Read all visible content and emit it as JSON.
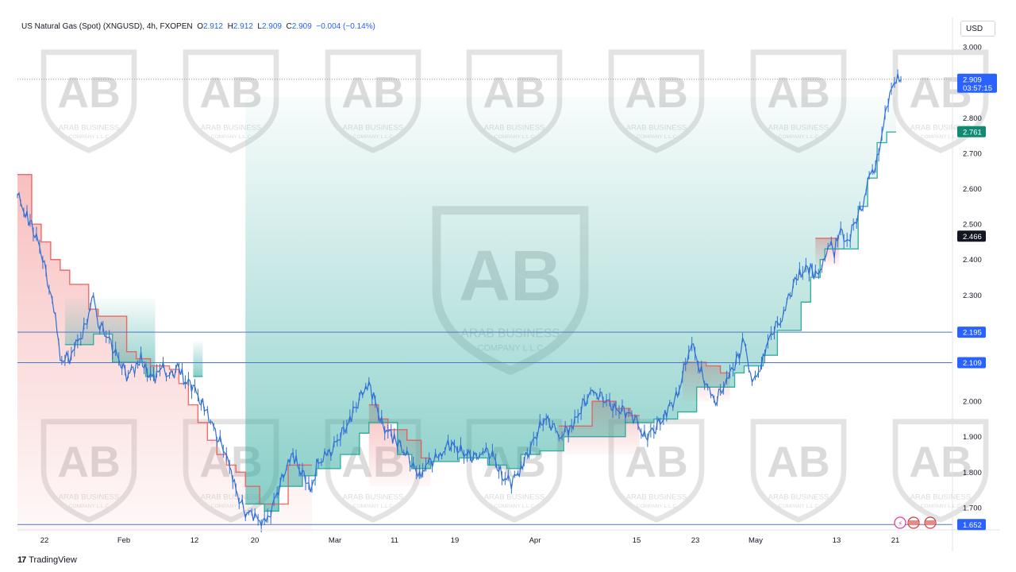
{
  "header": {
    "symbol": "US Natural Gas (Spot) (XNGUSD), 4h, FXOPEN",
    "o_label": "O",
    "o_value": "2.912",
    "h_label": "H",
    "h_value": "2.912",
    "l_label": "L",
    "l_value": "2.909",
    "c_label": "C",
    "c_value": "2.909",
    "change": "−0.004 (−0.14%)"
  },
  "currency_button": "USD",
  "footer": {
    "brand": "TradingView",
    "logo_glyph": "17"
  },
  "watermark": {
    "letters": "AB",
    "line1": "ARAB BUSINESS",
    "line2": "COMPANY L.L.C"
  },
  "colors": {
    "up": "#2962ff",
    "down": "#2962ff",
    "line": "#4a7fd1",
    "resistance": "#ef5350",
    "support": "#26a69a",
    "price_label_bg": "#2962ff",
    "dark_label_bg": "#131722",
    "green_label_bg": "#0f8a73"
  },
  "chart_data": {
    "type": "line",
    "title": "US Natural Gas (Spot) (XNGUSD), 4h, FXOPEN",
    "xlabel": "",
    "ylabel": "",
    "ylim": [
      1.637,
      3.043
    ],
    "y_ticks": [
      "2.800",
      "2.700",
      "2.600",
      "2.500",
      "2.400",
      "2.300",
      "2.000",
      "1.900",
      "1.800",
      "1.700"
    ],
    "y_top_partial_tick": "3.000",
    "x_ticks": [
      "22",
      "Feb",
      "12",
      "20",
      "Mar",
      "11",
      "19",
      "Apr",
      "15",
      "23",
      "May",
      "13",
      "21"
    ],
    "price_points": [
      [
        0,
        2.58
      ],
      [
        2,
        2.52
      ],
      [
        3,
        2.5
      ],
      [
        5,
        2.42
      ],
      [
        7,
        2.3
      ],
      [
        8,
        2.24
      ],
      [
        9,
        2.12
      ],
      [
        11,
        2.12
      ],
      [
        12,
        2.15
      ],
      [
        14,
        2.2
      ],
      [
        16,
        2.3
      ],
      [
        17,
        2.22
      ],
      [
        19,
        2.18
      ],
      [
        21,
        2.13
      ],
      [
        23,
        2.07
      ],
      [
        25,
        2.1
      ],
      [
        26,
        2.12
      ],
      [
        27,
        2.09
      ],
      [
        29,
        2.06
      ],
      [
        30,
        2.1
      ],
      [
        32,
        2.07
      ],
      [
        34,
        2.1
      ],
      [
        35,
        2.06
      ],
      [
        37,
        2.04
      ],
      [
        39,
        1.99
      ],
      [
        40,
        1.97
      ],
      [
        42,
        1.9
      ],
      [
        44,
        1.85
      ],
      [
        45,
        1.8
      ],
      [
        46,
        1.75
      ],
      [
        48,
        1.68
      ],
      [
        49,
        1.69
      ],
      [
        50,
        1.67
      ],
      [
        52,
        1.66
      ],
      [
        53,
        1.68
      ],
      [
        55,
        1.75
      ],
      [
        57,
        1.83
      ],
      [
        58,
        1.85
      ],
      [
        59,
        1.82
      ],
      [
        61,
        1.77
      ],
      [
        62,
        1.75
      ],
      [
        63,
        1.82
      ],
      [
        65,
        1.85
      ],
      [
        66,
        1.86
      ],
      [
        68,
        1.9
      ],
      [
        70,
        1.95
      ],
      [
        71,
        1.98
      ],
      [
        73,
        2.03
      ],
      [
        74,
        2.05
      ],
      [
        75,
        2.01
      ],
      [
        77,
        1.93
      ],
      [
        79,
        1.9
      ],
      [
        80,
        1.88
      ],
      [
        82,
        1.85
      ],
      [
        84,
        1.8
      ],
      [
        85,
        1.79
      ],
      [
        86,
        1.82
      ],
      [
        88,
        1.84
      ],
      [
        89,
        1.85
      ],
      [
        91,
        1.88
      ],
      [
        93,
        1.86
      ],
      [
        95,
        1.85
      ],
      [
        97,
        1.84
      ],
      [
        98,
        1.86
      ],
      [
        100,
        1.85
      ],
      [
        102,
        1.79
      ],
      [
        104,
        1.77
      ],
      [
        106,
        1.81
      ],
      [
        107,
        1.84
      ],
      [
        109,
        1.9
      ],
      [
        111,
        1.95
      ],
      [
        113,
        1.93
      ],
      [
        114,
        1.9
      ],
      [
        116,
        1.92
      ],
      [
        117,
        1.93
      ],
      [
        119,
        1.99
      ],
      [
        121,
        2.03
      ],
      [
        122,
        2.02
      ],
      [
        124,
        2
      ],
      [
        126,
        1.98
      ],
      [
        128,
        1.97
      ],
      [
        130,
        1.95
      ],
      [
        132,
        1.9
      ],
      [
        134,
        1.92
      ],
      [
        136,
        1.95
      ],
      [
        137,
        1.98
      ],
      [
        139,
        2.02
      ],
      [
        141,
        2.12
      ],
      [
        142,
        2.16
      ],
      [
        144,
        2.08
      ],
      [
        146,
        2.02
      ],
      [
        147,
        2
      ],
      [
        149,
        2.05
      ],
      [
        150,
        2.08
      ],
      [
        152,
        2.13
      ],
      [
        153,
        2.18
      ],
      [
        154,
        2.09
      ],
      [
        155,
        2.05
      ],
      [
        157,
        2.12
      ],
      [
        158,
        2.17
      ],
      [
        159,
        2.2
      ],
      [
        161,
        2.23
      ],
      [
        162,
        2.28
      ],
      [
        164,
        2.35
      ],
      [
        165,
        2.36
      ],
      [
        167,
        2.38
      ],
      [
        168,
        2.35
      ],
      [
        170,
        2.4
      ],
      [
        171,
        2.45
      ],
      [
        172,
        2.42
      ],
      [
        173,
        2.48
      ],
      [
        175,
        2.45
      ],
      [
        176,
        2.5
      ],
      [
        178,
        2.55
      ],
      [
        179,
        2.62
      ],
      [
        181,
        2.68
      ],
      [
        182,
        2.75
      ],
      [
        183,
        2.84
      ],
      [
        185,
        2.91
      ],
      [
        186,
        2.909
      ]
    ],
    "support_steps": [
      [
        10,
        2.16
      ],
      [
        16,
        2.19
      ],
      [
        20,
        2.11
      ],
      [
        27,
        2.07
      ],
      [
        37,
        2.07
      ],
      [
        48,
        1.71
      ],
      [
        52,
        1.69
      ],
      [
        55,
        1.76
      ],
      [
        60,
        1.79
      ],
      [
        63,
        1.81
      ],
      [
        68,
        1.85
      ],
      [
        72,
        1.91
      ],
      [
        74,
        1.94
      ],
      [
        80,
        1.85
      ],
      [
        83,
        1.81
      ],
      [
        87,
        1.83
      ],
      [
        93,
        1.84
      ],
      [
        99,
        1.82
      ],
      [
        103,
        1.81
      ],
      [
        106,
        1.85
      ],
      [
        110,
        1.86
      ],
      [
        115,
        1.9
      ],
      [
        123,
        1.9
      ],
      [
        128,
        1.94
      ],
      [
        134,
        1.95
      ],
      [
        139,
        1.97
      ],
      [
        143,
        2.04
      ],
      [
        147,
        2.04
      ],
      [
        151,
        2.08
      ],
      [
        153,
        2.1
      ],
      [
        157,
        2.13
      ],
      [
        160,
        2.2
      ],
      [
        163,
        2.2
      ],
      [
        165,
        2.28
      ],
      [
        167,
        2.35
      ],
      [
        169,
        2.4
      ],
      [
        170,
        2.43
      ],
      [
        175,
        2.43
      ],
      [
        177,
        2.55
      ],
      [
        179,
        2.63
      ],
      [
        181,
        2.73
      ],
      [
        183,
        2.76
      ]
    ],
    "resistance_steps": [
      [
        0,
        2.64
      ],
      [
        3,
        2.5
      ],
      [
        5,
        2.45
      ],
      [
        7,
        2.4
      ],
      [
        9,
        2.37
      ],
      [
        11,
        2.33
      ],
      [
        15,
        2.26
      ],
      [
        17,
        2.24
      ],
      [
        23,
        2.14
      ],
      [
        25,
        2.12
      ],
      [
        28,
        2.1
      ],
      [
        32,
        2.09
      ],
      [
        34,
        2.05
      ],
      [
        36,
        1.99
      ],
      [
        38,
        1.94
      ],
      [
        40,
        1.89
      ],
      [
        42,
        1.85
      ],
      [
        44,
        1.82
      ],
      [
        46,
        1.8
      ],
      [
        48,
        1.76
      ],
      [
        51,
        1.71
      ],
      [
        57,
        1.82
      ],
      [
        60,
        1.82
      ],
      [
        74,
        1.99
      ],
      [
        76,
        1.95
      ],
      [
        78,
        1.92
      ],
      [
        82,
        1.89
      ],
      [
        85,
        1.84
      ],
      [
        114,
        1.93
      ],
      [
        118,
        1.93
      ],
      [
        121,
        2
      ],
      [
        126,
        1.98
      ],
      [
        129,
        1.96
      ],
      [
        140,
        2.11
      ],
      [
        145,
        2.1
      ],
      [
        148,
        2.08
      ],
      [
        168,
        2.46
      ],
      [
        171,
        2.46
      ]
    ],
    "horizontal_lines": [
      {
        "value": 2.195,
        "label": "2.195",
        "color": "#2962ff"
      },
      {
        "value": 2.109,
        "label": "2.109",
        "color": "#2962ff"
      },
      {
        "value": 1.652,
        "label": "1.652",
        "color": "#2962ff"
      }
    ],
    "price_labels": [
      {
        "value": 2.909,
        "text": "2.909",
        "subtext": "03:57:15",
        "style": "blue"
      },
      {
        "value": 2.761,
        "text": "2.761",
        "style": "green"
      },
      {
        "value": 2.466,
        "text": "2.466",
        "style": "dark"
      }
    ],
    "last_price": 2.909,
    "grid": false,
    "legend": "none"
  }
}
